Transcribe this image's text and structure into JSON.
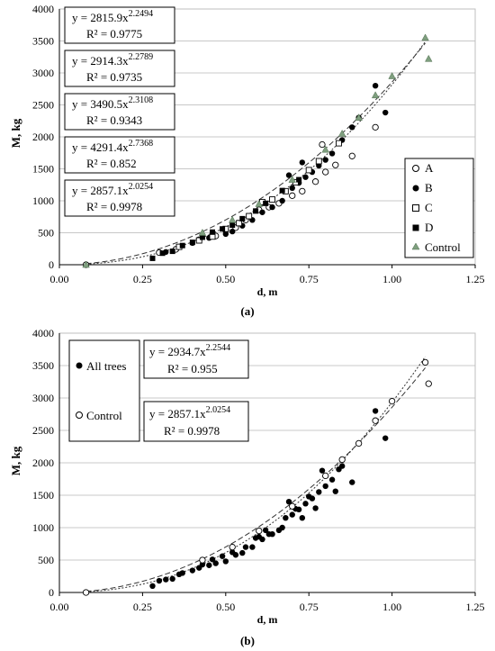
{
  "chart_data": [
    {
      "type": "scatter",
      "panel_label": "(a)",
      "xlabel": "d, m",
      "ylabel": "M, kg",
      "xlim": [
        0,
        1.25
      ],
      "ylim": [
        0,
        4000
      ],
      "x_ticks": [
        "0.00",
        "0.25",
        "0.50",
        "0.75",
        "1.00",
        "1.25"
      ],
      "y_ticks": [
        "0",
        "500",
        "1000",
        "1500",
        "2000",
        "2500",
        "3000",
        "3500",
        "4000"
      ],
      "grid": "horizontal",
      "legend_position": "bottom-right",
      "series": [
        {
          "name": "A",
          "marker": "open-circle",
          "points": [
            [
              0.08,
              0
            ],
            [
              0.3,
              190
            ],
            [
              0.35,
              240
            ],
            [
              0.42,
              390
            ],
            [
              0.47,
              450
            ],
            [
              0.5,
              540
            ],
            [
              0.53,
              580
            ],
            [
              0.56,
              700
            ],
            [
              0.6,
              860
            ],
            [
              0.63,
              900
            ],
            [
              0.66,
              960
            ],
            [
              0.7,
              1080
            ],
            [
              0.73,
              1150
            ],
            [
              0.77,
              1300
            ],
            [
              0.8,
              1450
            ],
            [
              0.83,
              1560
            ],
            [
              0.88,
              1700
            ],
            [
              0.95,
              2150
            ],
            [
              0.79,
              1880
            ]
          ]
        },
        {
          "name": "B",
          "marker": "filled-circle",
          "points": [
            [
              0.32,
              200
            ],
            [
              0.4,
              340
            ],
            [
              0.45,
              420
            ],
            [
              0.5,
              480
            ],
            [
              0.52,
              520
            ],
            [
              0.55,
              610
            ],
            [
              0.58,
              700
            ],
            [
              0.61,
              820
            ],
            [
              0.64,
              900
            ],
            [
              0.67,
              1000
            ],
            [
              0.7,
              1200
            ],
            [
              0.72,
              1280
            ],
            [
              0.74,
              1370
            ],
            [
              0.76,
              1450
            ],
            [
              0.78,
              1550
            ],
            [
              0.8,
              1640
            ],
            [
              0.82,
              1740
            ],
            [
              0.85,
              1950
            ],
            [
              0.88,
              2150
            ],
            [
              0.95,
              2800
            ],
            [
              0.98,
              2380
            ],
            [
              0.9,
              2300
            ],
            [
              0.69,
              1400
            ],
            [
              0.73,
              1600
            ]
          ]
        },
        {
          "name": "C",
          "marker": "open-square",
          "points": [
            [
              0.36,
              280
            ],
            [
              0.42,
              380
            ],
            [
              0.46,
              440
            ],
            [
              0.5,
              560
            ],
            [
              0.54,
              650
            ],
            [
              0.57,
              760
            ],
            [
              0.61,
              980
            ],
            [
              0.64,
              1020
            ],
            [
              0.68,
              1150
            ],
            [
              0.71,
              1290
            ],
            [
              0.75,
              1480
            ],
            [
              0.78,
              1620
            ],
            [
              0.84,
              1900
            ]
          ]
        },
        {
          "name": "D",
          "marker": "filled-square",
          "points": [
            [
              0.28,
              100
            ],
            [
              0.31,
              180
            ],
            [
              0.34,
              210
            ],
            [
              0.37,
              300
            ],
            [
              0.4,
              350
            ],
            [
              0.43,
              430
            ],
            [
              0.46,
              510
            ],
            [
              0.49,
              560
            ],
            [
              0.52,
              620
            ],
            [
              0.55,
              720
            ],
            [
              0.59,
              840
            ],
            [
              0.62,
              960
            ],
            [
              0.67,
              1160
            ],
            [
              0.72,
              1330
            ]
          ]
        },
        {
          "name": "Control",
          "marker": "filled-triangle",
          "points": [
            [
              0.08,
              0
            ],
            [
              0.43,
              500
            ],
            [
              0.52,
              700
            ],
            [
              0.6,
              950
            ],
            [
              0.7,
              1330
            ],
            [
              0.8,
              1800
            ],
            [
              0.85,
              2050
            ],
            [
              0.9,
              2300
            ],
            [
              0.95,
              2650
            ],
            [
              1.0,
              2950
            ],
            [
              1.1,
              3550
            ],
            [
              1.11,
              3220
            ]
          ]
        }
      ],
      "trendlines": [
        {
          "style": "dotted",
          "a": 2815.9,
          "b": 2.2494
        },
        {
          "style": "dashed",
          "a": 2857.1,
          "b": 2.0254
        }
      ],
      "annotations": [
        {
          "eq_prefix": "y = 2815.9x",
          "exponent": "2.2494",
          "r2": "R² = 0.9775"
        },
        {
          "eq_prefix": "y = 2914.3x",
          "exponent": "2.2789",
          "r2": "R² = 0.9735"
        },
        {
          "eq_prefix": "y = 3490.5x",
          "exponent": "2.3108",
          "r2": "R² = 0.9343"
        },
        {
          "eq_prefix": "y = 4291.4x",
          "exponent": "2.7368",
          "r2": "R² = 0.852"
        },
        {
          "eq_prefix": "y = 2857.1x",
          "exponent": "2.0254",
          "r2": "R² = 0.9978"
        }
      ]
    },
    {
      "type": "scatter",
      "panel_label": "(b)",
      "xlabel": "d, m",
      "ylabel": "M, kg",
      "xlim": [
        0,
        1.25
      ],
      "ylim": [
        0,
        4000
      ],
      "x_ticks": [
        "0.00",
        "0.25",
        "0.50",
        "0.75",
        "1.00",
        "1.25"
      ],
      "y_ticks": [
        "0",
        "500",
        "1000",
        "1500",
        "2000",
        "2500",
        "3000",
        "3500",
        "4000"
      ],
      "grid": "horizontal",
      "legend_position": "top-left",
      "series": [
        {
          "name": "All trees",
          "marker": "filled-circle",
          "points": [
            [
              0.08,
              0
            ],
            [
              0.28,
              100
            ],
            [
              0.3,
              180
            ],
            [
              0.32,
              200
            ],
            [
              0.34,
              210
            ],
            [
              0.36,
              280
            ],
            [
              0.37,
              300
            ],
            [
              0.4,
              340
            ],
            [
              0.42,
              380
            ],
            [
              0.43,
              430
            ],
            [
              0.45,
              420
            ],
            [
              0.46,
              510
            ],
            [
              0.47,
              450
            ],
            [
              0.49,
              560
            ],
            [
              0.5,
              480
            ],
            [
              0.52,
              620
            ],
            [
              0.53,
              580
            ],
            [
              0.55,
              610
            ],
            [
              0.56,
              700
            ],
            [
              0.58,
              700
            ],
            [
              0.59,
              840
            ],
            [
              0.6,
              860
            ],
            [
              0.61,
              820
            ],
            [
              0.62,
              960
            ],
            [
              0.63,
              900
            ],
            [
              0.64,
              900
            ],
            [
              0.66,
              960
            ],
            [
              0.67,
              1000
            ],
            [
              0.68,
              1150
            ],
            [
              0.69,
              1400
            ],
            [
              0.7,
              1200
            ],
            [
              0.71,
              1290
            ],
            [
              0.72,
              1280
            ],
            [
              0.73,
              1150
            ],
            [
              0.74,
              1370
            ],
            [
              0.75,
              1480
            ],
            [
              0.76,
              1450
            ],
            [
              0.77,
              1300
            ],
            [
              0.78,
              1550
            ],
            [
              0.79,
              1880
            ],
            [
              0.8,
              1640
            ],
            [
              0.82,
              1740
            ],
            [
              0.83,
              1560
            ],
            [
              0.84,
              1900
            ],
            [
              0.85,
              1950
            ],
            [
              0.88,
              1700
            ],
            [
              0.9,
              2300
            ],
            [
              0.95,
              2800
            ],
            [
              0.98,
              2380
            ]
          ]
        },
        {
          "name": "Control",
          "marker": "open-circle",
          "points": [
            [
              0.08,
              0
            ],
            [
              0.43,
              500
            ],
            [
              0.52,
              700
            ],
            [
              0.6,
              950
            ],
            [
              0.7,
              1330
            ],
            [
              0.8,
              1800
            ],
            [
              0.85,
              2050
            ],
            [
              0.9,
              2300
            ],
            [
              0.95,
              2650
            ],
            [
              1.0,
              2950
            ],
            [
              1.1,
              3550
            ],
            [
              1.11,
              3220
            ]
          ]
        }
      ],
      "trendlines": [
        {
          "style": "dotted",
          "a": 2934.7,
          "b": 2.2544
        },
        {
          "style": "dashed",
          "a": 2857.1,
          "b": 2.0254
        }
      ],
      "annotations": [
        {
          "eq_prefix": "y = 2934.7x",
          "exponent": "2.2544",
          "r2": "R² = 0.955"
        },
        {
          "eq_prefix": "y = 2857.1x",
          "exponent": "2.0254",
          "r2": "R² = 0.9978"
        }
      ]
    }
  ]
}
